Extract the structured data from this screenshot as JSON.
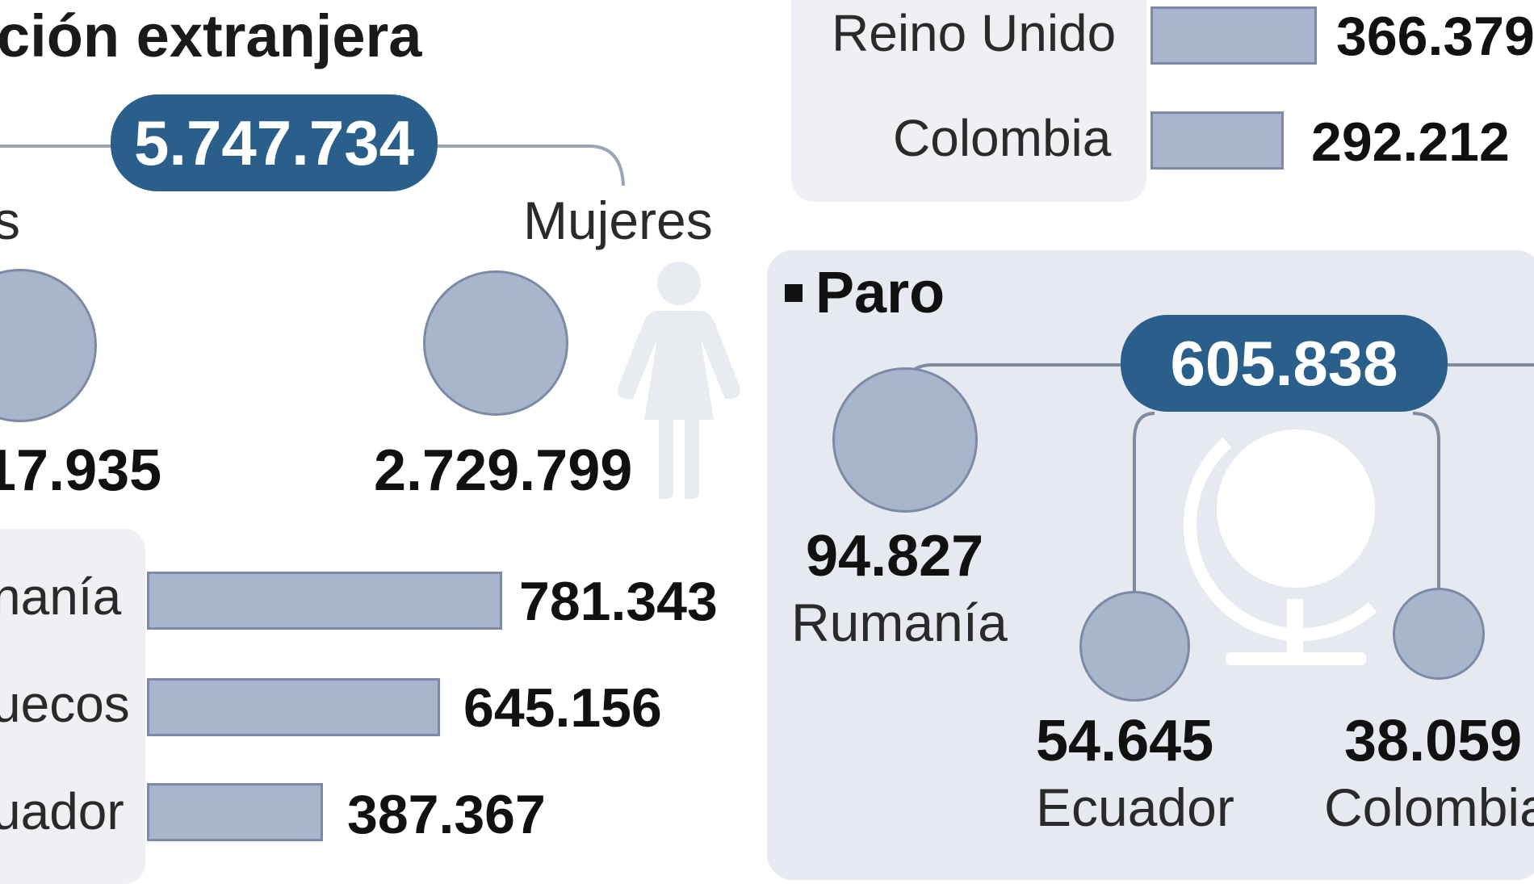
{
  "chart_data": [
    {
      "type": "bar",
      "title": "ción extranjera",
      "total": "5.747.734",
      "gender": {
        "men_label": "s",
        "men_value": "17.935",
        "women_label": "Mujeres",
        "women_value": "2.729.799"
      },
      "categories": [
        "Reino Unido",
        "Colombia",
        "nanía",
        "uecos",
        "uador"
      ],
      "values": [
        366379,
        292212,
        781343,
        645156,
        387367
      ],
      "value_labels": [
        "366.379",
        "292.212",
        "781.343",
        "645.156",
        "387.367"
      ]
    },
    {
      "type": "bar",
      "title": "Paro",
      "total": "605.838",
      "categories": [
        "Rumanía",
        "Ecuador",
        "Colombia"
      ],
      "values": [
        94827,
        54645,
        38059
      ],
      "value_labels": [
        "94.827",
        "54.645",
        "38.059"
      ]
    }
  ],
  "colors": {
    "accent": "#295f8a",
    "mark_fill": "#a8b5cd",
    "mark_stroke": "#7c8aa6",
    "panel": "#e6e9ef"
  },
  "icons": [
    "woman-icon",
    "globe-icon"
  ]
}
